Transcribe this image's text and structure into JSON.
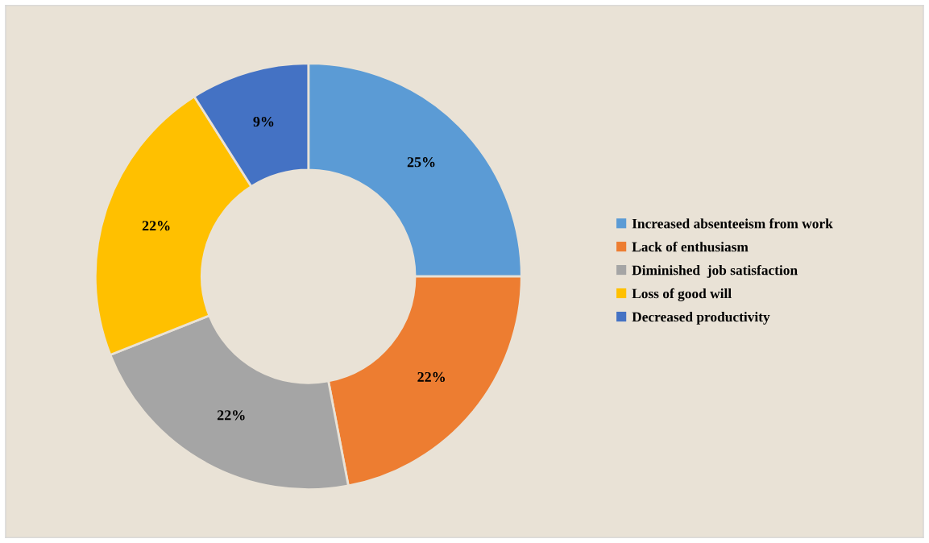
{
  "chart_data": {
    "type": "donut",
    "categories": [
      "Increased absenteeism from work",
      "Lack of enthusiasm",
      "Diminished  job satisfaction",
      "Loss of good will",
      "Decreased productivity"
    ],
    "values": [
      25,
      22,
      22,
      22,
      9
    ],
    "colors": [
      "#5b9bd5",
      "#ed7d31",
      "#a5a5a5",
      "#ffc000",
      "#4472c4"
    ],
    "value_labels": [
      "25%",
      "22%",
      "22%",
      "22%",
      "9%"
    ],
    "legend": "right"
  }
}
